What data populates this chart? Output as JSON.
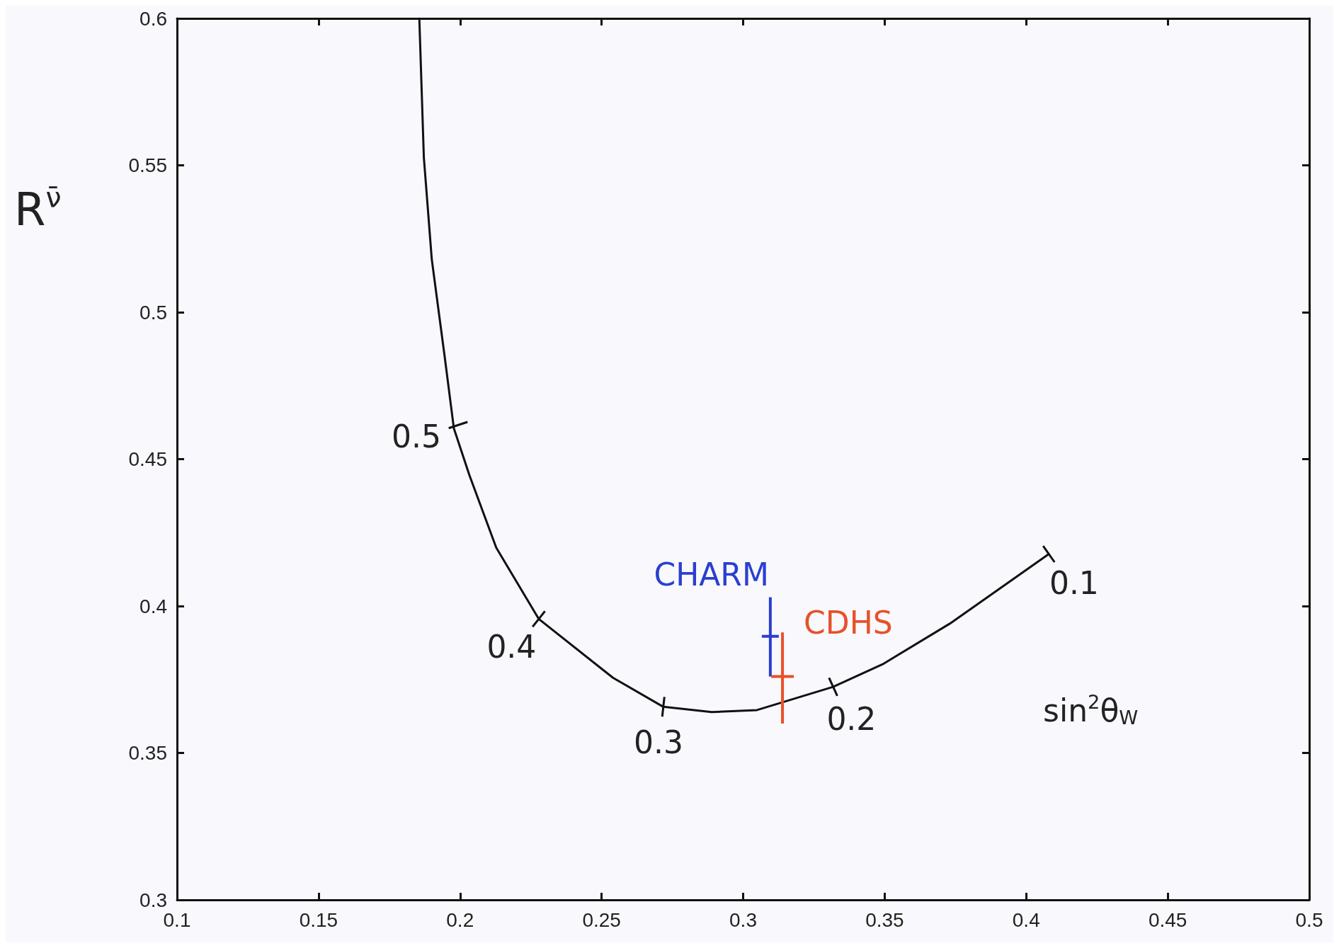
{
  "chart_data": {
    "type": "line",
    "ylabel": "R$^{ν̄}$",
    "xlim": [
      0.1,
      0.5
    ],
    "xticks": [
      0.1,
      0.15,
      0.2,
      0.25,
      0.3,
      0.35,
      0.4,
      0.45,
      0.5
    ],
    "ylim": [
      0.3,
      0.6
    ],
    "yticks": [
      0.3,
      0.35,
      0.4,
      0.45,
      0.5,
      0.55,
      0.6
    ],
    "series": [
      {
        "color": "#111111",
        "x": [
          0.1856,
          0.1872,
          0.19,
          0.1945,
          0.1978,
          0.2033,
          0.2128,
          0.2278,
          0.254,
          0.2718,
          0.2889,
          0.3049,
          0.3318,
          0.3493,
          0.373,
          0.408
        ],
        "values": [
          0.6,
          0.5527,
          0.518,
          0.4853,
          0.4605,
          0.4445,
          0.4198,
          0.3956,
          0.3756,
          0.3657,
          0.3639,
          0.3646,
          0.3725,
          0.3802,
          0.394,
          0.4177
        ]
      },
      {
        "type": "scatter",
        "name": "CHARM",
        "color": "#2a3fd0",
        "x": [
          0.3096
        ],
        "values": [
          0.3897
        ],
        "errors": [
          [
            0.376,
            0.403
          ]
        ],
        "xerrors": [
          0.003
        ]
      },
      {
        "type": "scatter",
        "name": "CDHS",
        "color": "#e8502a",
        "x": [
          0.3139
        ],
        "values": [
          0.376
        ],
        "errors": [
          [
            0.36,
            0.391
          ]
        ],
        "xerrors": [
          0.004
        ]
      }
    ],
    "annotations": [
      {
        "text": "0.5",
        "x": 0.1993,
        "y": 0.4616
      },
      {
        "text": "0.4",
        "x": 0.2278,
        "y": 0.3956
      },
      {
        "text": "0.3",
        "x": 0.2718,
        "y": 0.3657
      },
      {
        "text": "0.2",
        "x": 0.3318,
        "y": 0.3725
      },
      {
        "text": "0.1",
        "x": 0.408,
        "y": 0.4177
      },
      "sin$^{2}$θ$_{W}$"
    ]
  }
}
